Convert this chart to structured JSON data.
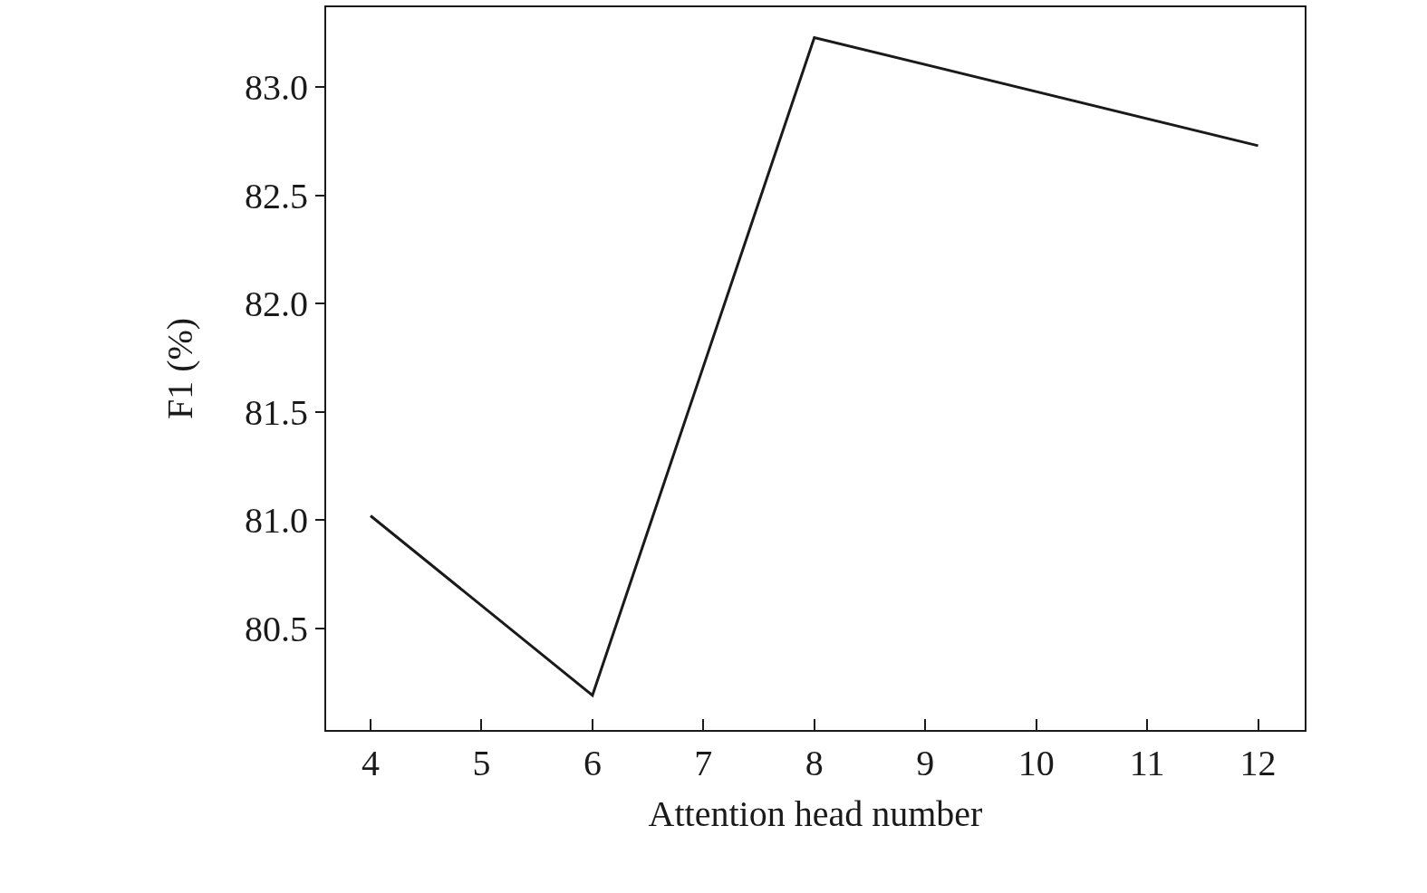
{
  "chart_data": {
    "type": "line",
    "xlabel": "Attention head number",
    "ylabel": "F1 (%)",
    "x": [
      4,
      6,
      8,
      12
    ],
    "series": [
      {
        "color": "#1a1a1a",
        "values": [
          81.02,
          80.19,
          83.23,
          82.73
        ]
      }
    ],
    "xlim": [
      3.6,
      12.42
    ],
    "xticks": [
      4,
      5,
      6,
      7,
      8,
      9,
      10,
      11,
      12
    ],
    "ylim": [
      80.03,
      83.37
    ],
    "yticks": [
      {
        "value": 80.5,
        "label": "80.5"
      },
      {
        "value": 81.0,
        "label": "81.0"
      },
      {
        "value": 81.5,
        "label": "81.5"
      },
      {
        "value": 82.0,
        "label": "82.0"
      },
      {
        "value": 82.5,
        "label": "82.5"
      },
      {
        "value": 83.0,
        "label": "83.0"
      }
    ],
    "marker": "none",
    "line_style": "solid"
  }
}
